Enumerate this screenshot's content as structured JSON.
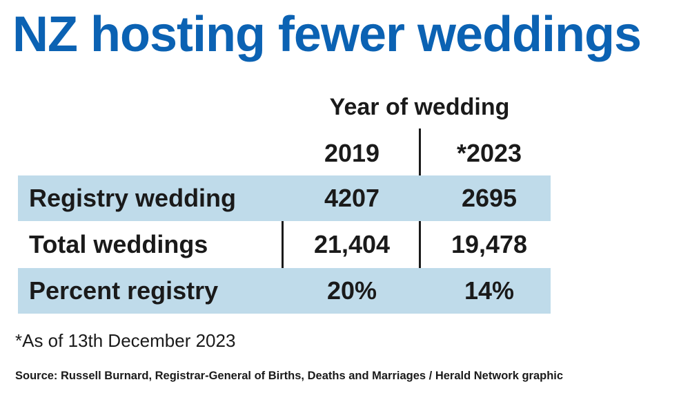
{
  "chart_data": {
    "type": "table",
    "title": "NZ hosting fewer weddings",
    "column_group_label": "Year of wedding",
    "columns": [
      "2019",
      "*2023"
    ],
    "rows": [
      {
        "label": "Registry wedding",
        "values": [
          "4207",
          "2695"
        ]
      },
      {
        "label": "Total weddings",
        "values": [
          "21,404",
          "19,478"
        ]
      },
      {
        "label": "Percent registry",
        "values": [
          "20%",
          "14%"
        ]
      }
    ],
    "footnote": "*As of 13th December 2023",
    "source": "Source: Russell Burnard, Registrar-General of Births, Deaths and Marriages / Herald Network graphic"
  },
  "colors": {
    "title": "#0b62b3",
    "row_shade": "#bfdbea",
    "text": "#1a1a1a"
  }
}
